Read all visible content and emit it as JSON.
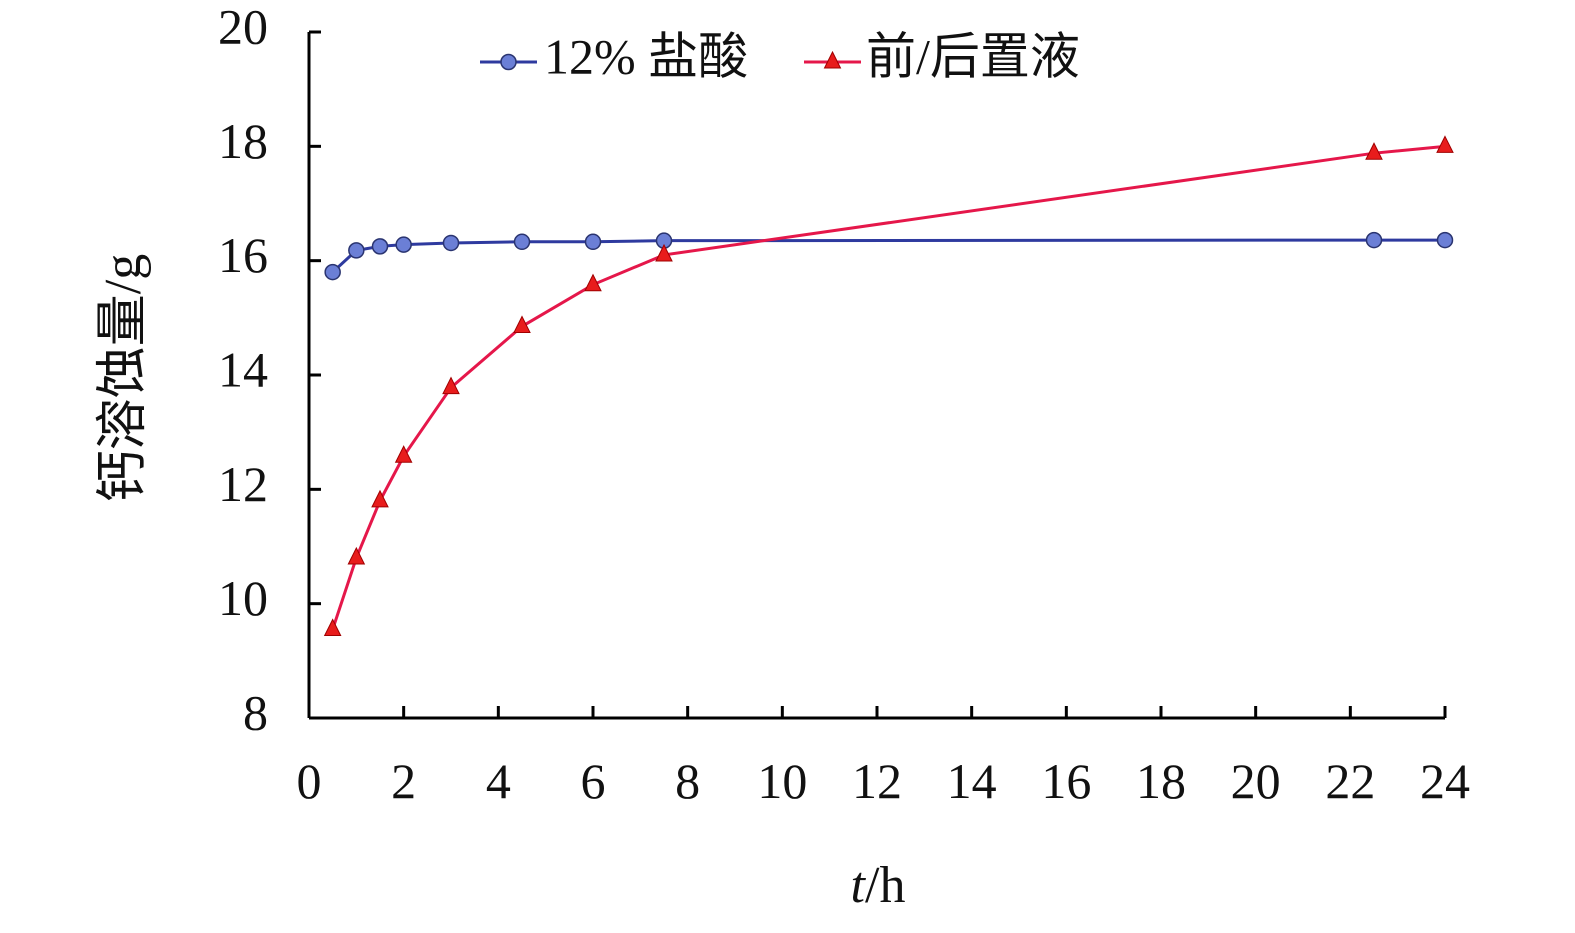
{
  "chart_data": {
    "type": "line",
    "xlabel": {
      "italic": "t",
      "rest": "/h"
    },
    "ylabel": "钙溶蚀量/g",
    "xlim": [
      0,
      24
    ],
    "ylim": [
      8,
      20
    ],
    "xticks": [
      "0",
      "2",
      "4",
      "6",
      "8",
      "10",
      "12",
      "14",
      "16",
      "18",
      "20",
      "22",
      "24"
    ],
    "yticks": [
      "8",
      "10",
      "12",
      "14",
      "16",
      "18",
      "20"
    ],
    "grid": false,
    "legend_position": "top",
    "series": [
      {
        "name": "12% 盐酸",
        "color": "#2e3a9f",
        "marker_fill": "#6b7fd6",
        "marker": "circle",
        "points": [
          [
            0.5,
            15.8
          ],
          [
            1.0,
            16.18
          ],
          [
            1.5,
            16.25
          ],
          [
            2.0,
            16.28
          ],
          [
            3.0,
            16.31
          ],
          [
            4.5,
            16.33
          ],
          [
            6.0,
            16.33
          ],
          [
            7.5,
            16.35
          ],
          [
            22.5,
            16.36
          ],
          [
            24.0,
            16.36
          ]
        ]
      },
      {
        "name": "前/后置液",
        "color": "#e5174a",
        "marker_fill": "#e81c1c",
        "marker": "triangle",
        "points": [
          [
            0.5,
            9.55
          ],
          [
            1.0,
            10.8
          ],
          [
            1.5,
            11.8
          ],
          [
            2.0,
            12.58
          ],
          [
            3.0,
            13.78
          ],
          [
            4.5,
            14.85
          ],
          [
            6.0,
            15.58
          ],
          [
            7.5,
            16.1
          ],
          [
            22.5,
            17.88
          ],
          [
            24.0,
            18.0
          ]
        ]
      }
    ]
  }
}
